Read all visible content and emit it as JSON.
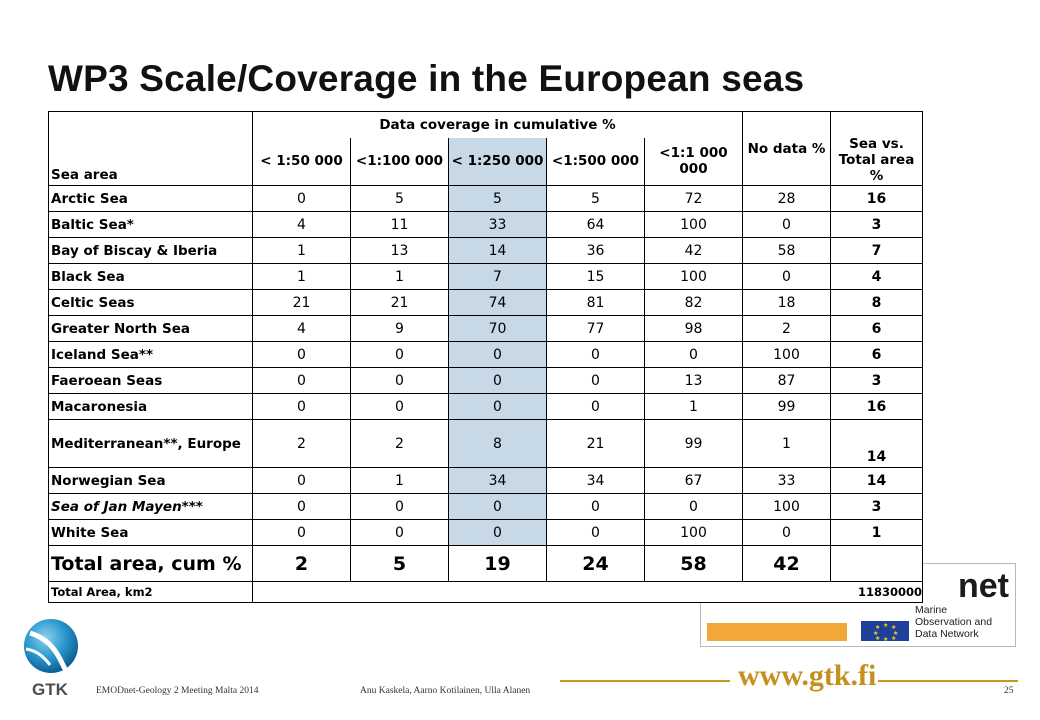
{
  "slide": {
    "title": "WP3 Scale/Coverage in the European seas",
    "footer_left": "EMODnet-Geology 2 Meeting Malta 2014",
    "footer_mid": "Anu Kaskela, Aarno Kotilainen, Ulla Alanen",
    "page_number": "25",
    "website": "www.gtk.fi",
    "gtk_logo_text": "GTK",
    "emodnet_brand": "net",
    "emodnet_tagline": "Marine\nObservation and\nData Network",
    "colors": {
      "highlight_column": "#c7d8e6",
      "gold": "#c9981e",
      "gtk_blue": "#1f8fc4"
    }
  },
  "table": {
    "header": {
      "sea_area": "Sea area",
      "group": "Data coverage in cumulative %",
      "c1": "< 1:50 000",
      "c2": "<1:100 000",
      "c3": "< 1:250 000",
      "c4": "<1:500 000",
      "c5": "<1:1 000 000",
      "no_data": "No data %",
      "vs_total": "Sea vs. Total area %"
    },
    "rows": [
      {
        "name": "Arctic Sea",
        "v": [
          "0",
          "5",
          "5",
          "5",
          "72",
          "28",
          "16"
        ]
      },
      {
        "name": "Baltic Sea*",
        "v": [
          "4",
          "11",
          "33",
          "64",
          "100",
          "0",
          "3"
        ]
      },
      {
        "name": "Bay of Biscay & Iberia",
        "v": [
          "1",
          "13",
          "14",
          "36",
          "42",
          "58",
          "7"
        ]
      },
      {
        "name": "Black Sea",
        "v": [
          "1",
          "1",
          "7",
          "15",
          "100",
          "0",
          "4"
        ]
      },
      {
        "name": "Celtic Seas",
        "v": [
          "21",
          "21",
          "74",
          "81",
          "82",
          "18",
          "8"
        ]
      },
      {
        "name": "Greater North Sea",
        "v": [
          "4",
          "9",
          "70",
          "77",
          "98",
          "2",
          "6"
        ]
      },
      {
        "name": "Iceland Sea**",
        "v": [
          "0",
          "0",
          "0",
          "0",
          "0",
          "100",
          "6"
        ]
      },
      {
        "name": "Faeroean Seas",
        "v": [
          "0",
          "0",
          "0",
          "0",
          "13",
          "87",
          "3"
        ]
      },
      {
        "name": "Macaronesia",
        "v": [
          "0",
          "0",
          "0",
          "0",
          "1",
          "99",
          "16"
        ]
      },
      {
        "name": "Mediterranean**, Europe",
        "v": [
          "2",
          "2",
          "8",
          "21",
          "99",
          "1",
          "14"
        ]
      },
      {
        "name": "Norwegian Sea",
        "v": [
          "0",
          "1",
          "34",
          "34",
          "67",
          "33",
          "14"
        ]
      },
      {
        "name": "Sea of Jan Mayen***",
        "v": [
          "0",
          "0",
          "0",
          "0",
          "0",
          "100",
          "3"
        ]
      },
      {
        "name": "White Sea",
        "v": [
          "0",
          "0",
          "0",
          "0",
          "100",
          "0",
          "1"
        ]
      }
    ],
    "total_cum": {
      "label": "Total area, cum %",
      "v": [
        "2",
        "5",
        "19",
        "24",
        "58",
        "42"
      ]
    },
    "total_km2": {
      "label": "Total Area, km2",
      "value": "11830000"
    }
  }
}
